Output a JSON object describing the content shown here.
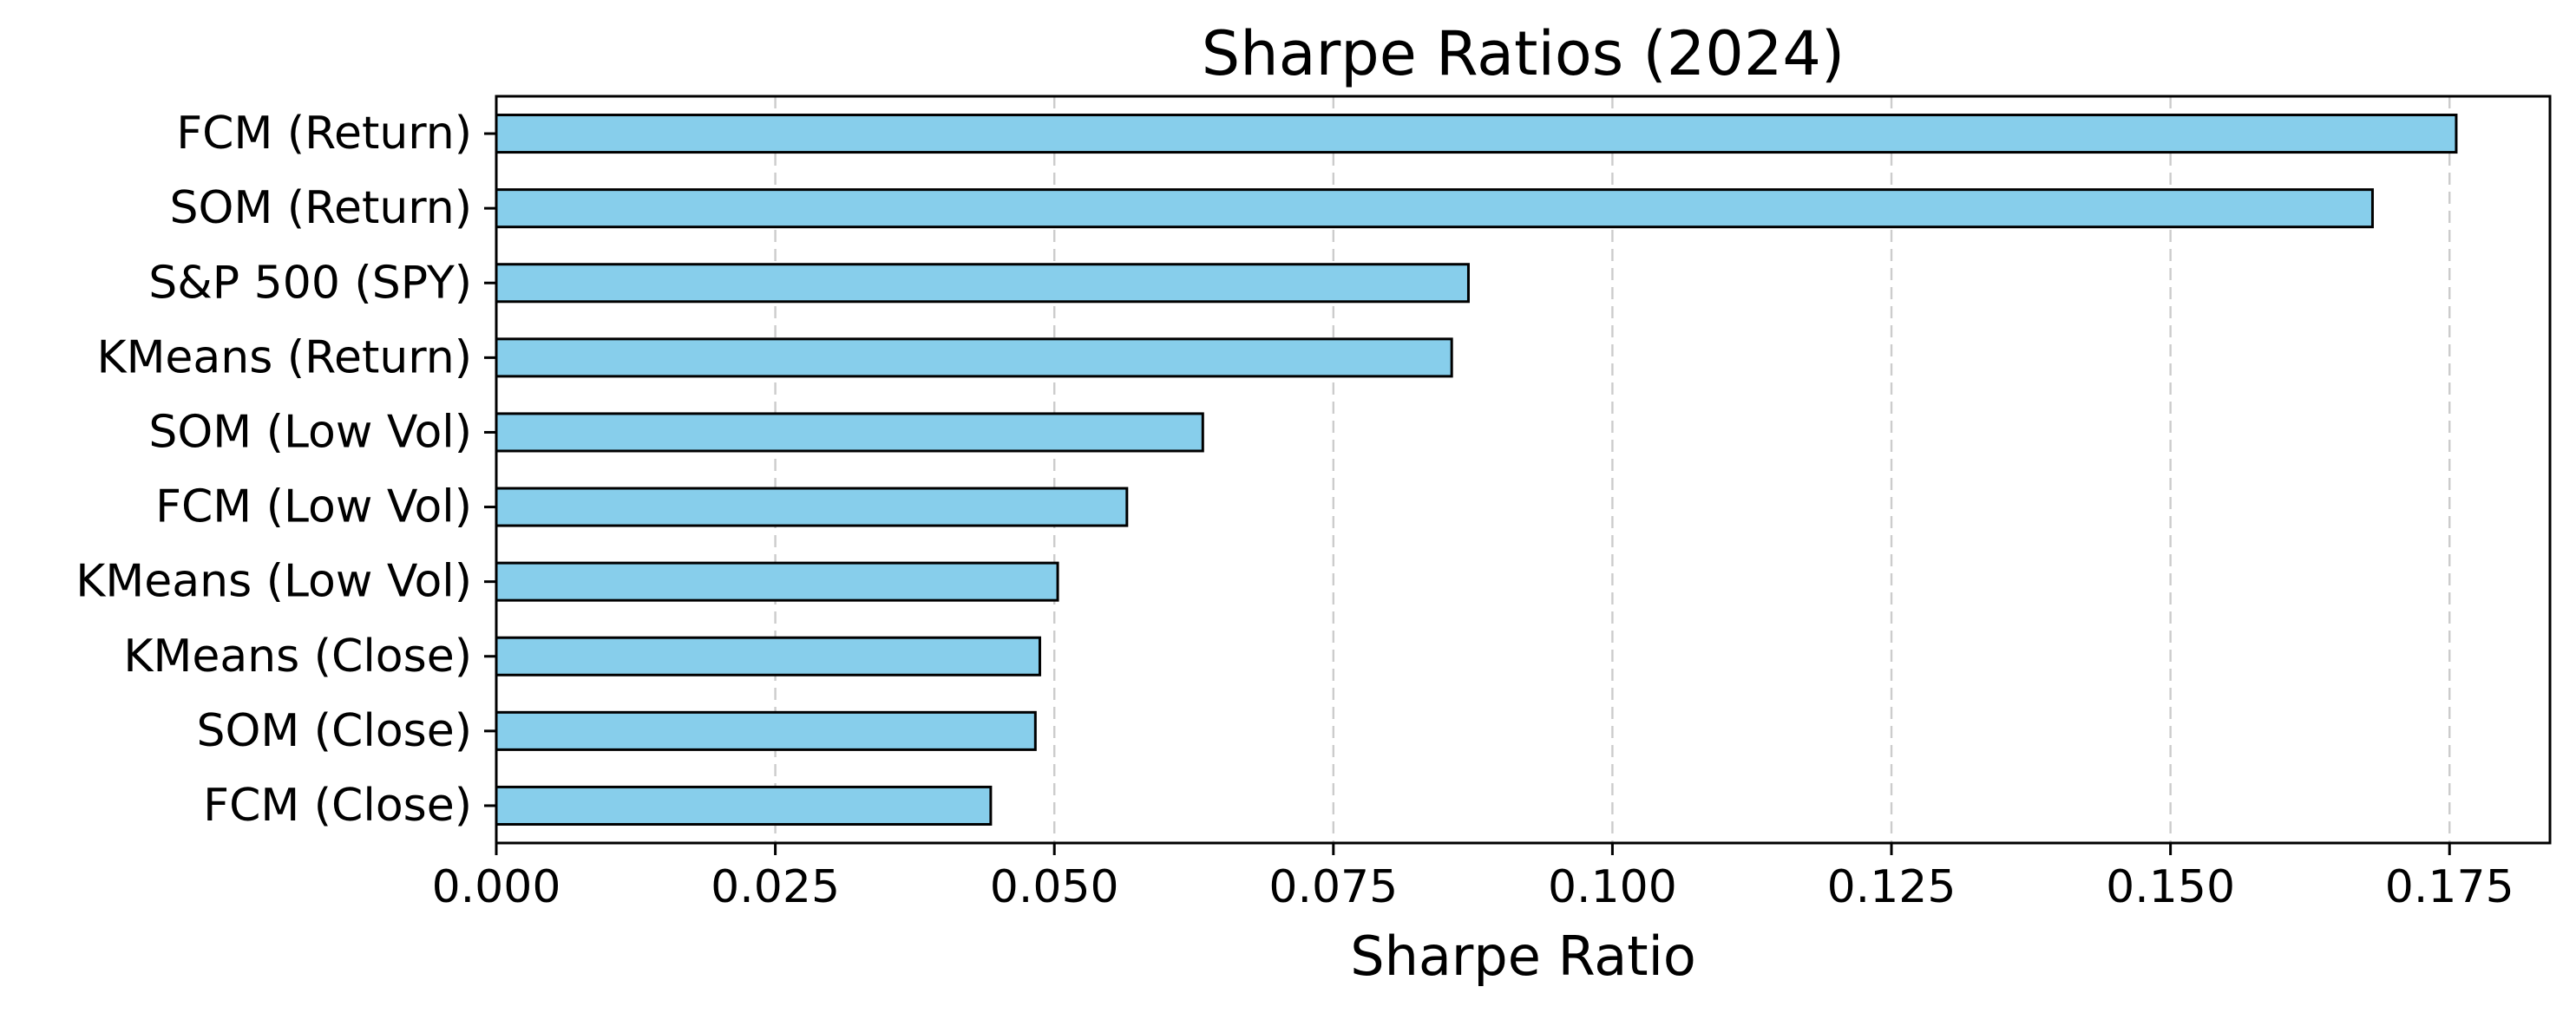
{
  "chart_data": {
    "type": "bar",
    "orientation": "horizontal",
    "title": "Sharpe Ratios (2024)",
    "xlabel": "Sharpe Ratio",
    "ylabel": "",
    "xlim": [
      0,
      0.184
    ],
    "xticks": [
      0.0,
      0.025,
      0.05,
      0.075,
      0.1,
      0.125,
      0.15,
      0.175
    ],
    "xtick_labels": [
      "0.000",
      "0.025",
      "0.050",
      "0.075",
      "0.100",
      "0.125",
      "0.150",
      "0.175"
    ],
    "grid": "x-axis, dashed",
    "bar_color": "#87ceeb",
    "edge_color": "#000000",
    "grid_color": "#cccccc",
    "categories": [
      "FCM (Return)",
      "SOM (Return)",
      "S&P 500 (SPY)",
      "KMeans (Return)",
      "SOM (Low Vol)",
      "FCM (Low Vol)",
      "KMeans (Low Vol)",
      "KMeans (Close)",
      "SOM (Close)",
      "FCM (Close)"
    ],
    "values": [
      0.1756,
      0.1681,
      0.0871,
      0.0856,
      0.0633,
      0.0565,
      0.0503,
      0.0487,
      0.0483,
      0.0443
    ]
  }
}
